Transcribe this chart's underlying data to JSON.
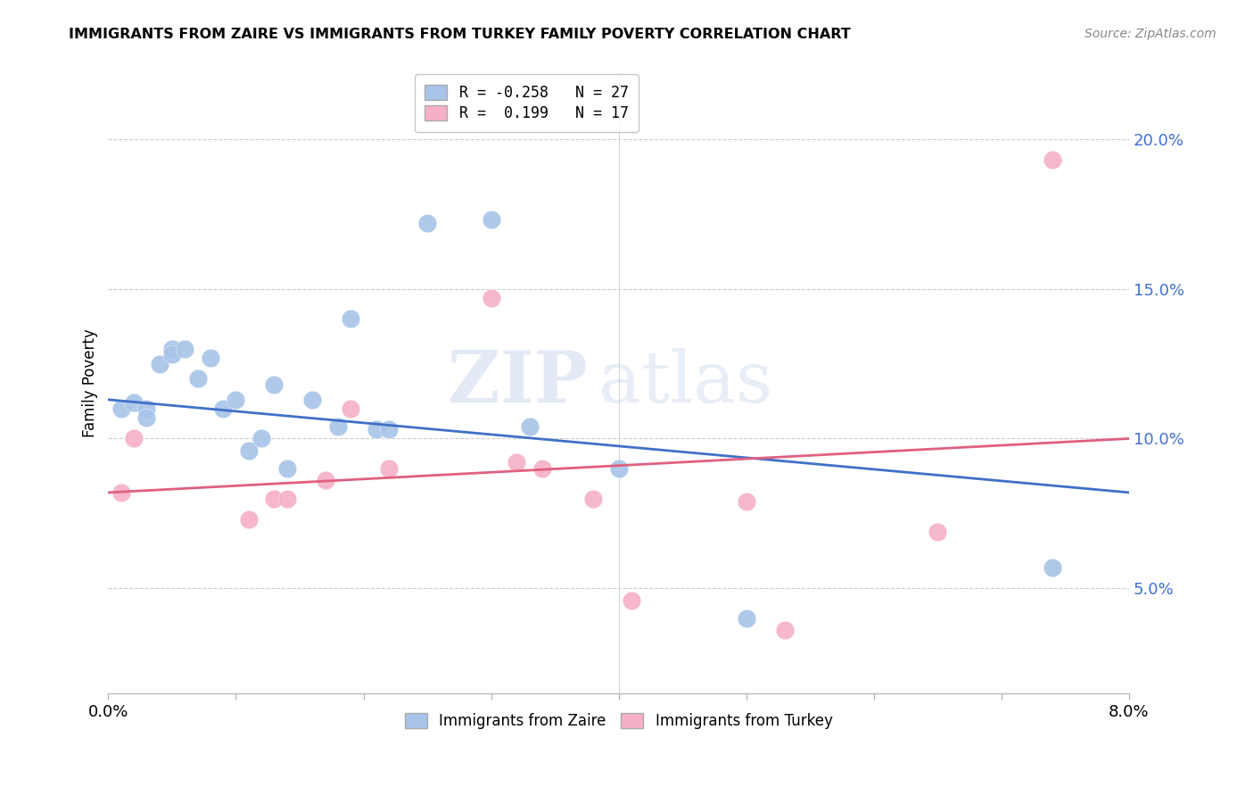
{
  "title": "IMMIGRANTS FROM ZAIRE VS IMMIGRANTS FROM TURKEY FAMILY POVERTY CORRELATION CHART",
  "source": "Source: ZipAtlas.com",
  "ylabel": "Family Poverty",
  "right_yticks": [
    0.05,
    0.1,
    0.15,
    0.2
  ],
  "right_yticklabels": [
    "5.0%",
    "10.0%",
    "15.0%",
    "20.0%"
  ],
  "xticks": [
    0.0,
    0.01,
    0.02,
    0.03,
    0.04,
    0.05,
    0.06,
    0.07,
    0.08
  ],
  "xticklabels": [
    "0.0%",
    "",
    "",
    "",
    "",
    "",
    "",
    "",
    "8.0%"
  ],
  "xmin": 0.0,
  "xmax": 0.08,
  "ymin": 0.015,
  "ymax": 0.222,
  "legend_r_zaire": "-0.258",
  "legend_n_zaire": "27",
  "legend_r_turkey": " 0.199",
  "legend_n_turkey": "17",
  "color_zaire": "#a8c4e8",
  "color_turkey": "#f5b0c8",
  "color_zaire_line": "#4070c8",
  "color_turkey_line": "#e06080",
  "color_right_axis": "#4070d0",
  "watermark_zip": "ZIP",
  "watermark_atlas": "atlas",
  "zaire_x": [
    0.001,
    0.002,
    0.003,
    0.003,
    0.004,
    0.005,
    0.005,
    0.006,
    0.007,
    0.008,
    0.009,
    0.01,
    0.011,
    0.012,
    0.013,
    0.014,
    0.016,
    0.018,
    0.019,
    0.021,
    0.022,
    0.025,
    0.03,
    0.033,
    0.04,
    0.05,
    0.074
  ],
  "zaire_y": [
    0.11,
    0.112,
    0.11,
    0.107,
    0.125,
    0.13,
    0.128,
    0.13,
    0.12,
    0.127,
    0.11,
    0.113,
    0.096,
    0.1,
    0.118,
    0.09,
    0.113,
    0.104,
    0.14,
    0.103,
    0.103,
    0.172,
    0.173,
    0.104,
    0.09,
    0.04,
    0.057
  ],
  "turkey_x": [
    0.001,
    0.002,
    0.011,
    0.013,
    0.014,
    0.017,
    0.019,
    0.022,
    0.03,
    0.032,
    0.034,
    0.038,
    0.041,
    0.05,
    0.053,
    0.065,
    0.074
  ],
  "turkey_y": [
    0.082,
    0.1,
    0.073,
    0.08,
    0.08,
    0.086,
    0.11,
    0.09,
    0.147,
    0.092,
    0.09,
    0.08,
    0.046,
    0.079,
    0.036,
    0.069,
    0.193
  ],
  "zaire_trendline_x": [
    0.0,
    0.08
  ],
  "zaire_trendline_y": [
    0.113,
    0.082
  ],
  "turkey_trendline_x": [
    0.0,
    0.08
  ],
  "turkey_trendline_y": [
    0.082,
    0.1
  ]
}
